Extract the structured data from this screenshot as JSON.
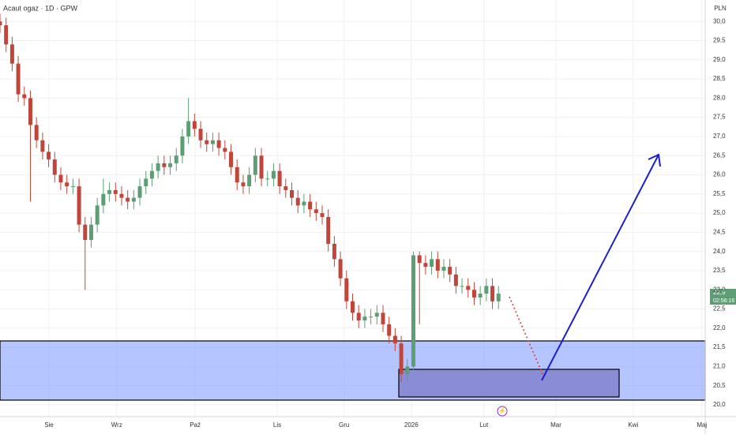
{
  "chart_data": {
    "type": "candlestick",
    "title": "Acaut ogaz · 1D · GPW",
    "currency": "PLN",
    "last_price_label": "22,9",
    "countdown": "02:56:16",
    "up_color": "#5c9f74",
    "down_color": "#c0463a",
    "grid": true,
    "xlim": [
      0,
      232
    ],
    "ylim": [
      19.69,
      30.56
    ],
    "xticks": [
      {
        "value": 16.1,
        "label": "Sie"
      },
      {
        "value": 38.4,
        "label": "Wrz"
      },
      {
        "value": 64.2,
        "label": "Paź"
      },
      {
        "value": 91.2,
        "label": "Lis"
      },
      {
        "value": 113.2,
        "label": "Gru"
      },
      {
        "value": 135.3,
        "label": "2026"
      },
      {
        "value": 159.2,
        "label": "Lut"
      },
      {
        "value": 182.9,
        "label": "Mar"
      },
      {
        "value": 208.3,
        "label": "Kwi"
      },
      {
        "value": 230.9,
        "label": "Maj"
      }
    ],
    "yticks": [
      {
        "value": 20.0,
        "label": "20,0"
      },
      {
        "value": 20.5,
        "label": "20,5"
      },
      {
        "value": 21.0,
        "label": "21,0"
      },
      {
        "value": 21.5,
        "label": "21,5"
      },
      {
        "value": 22.0,
        "label": "22,0"
      },
      {
        "value": 22.5,
        "label": "22,5"
      },
      {
        "value": 23.0,
        "label": "23,0"
      },
      {
        "value": 23.5,
        "label": "23,5"
      },
      {
        "value": 24.0,
        "label": "24,0"
      },
      {
        "value": 24.5,
        "label": "24,5"
      },
      {
        "value": 25.0,
        "label": "25,0"
      },
      {
        "value": 25.5,
        "label": "25,5"
      },
      {
        "value": 26.0,
        "label": "26,0"
      },
      {
        "value": 26.5,
        "label": "26,5"
      },
      {
        "value": 27.0,
        "label": "27,0"
      },
      {
        "value": 27.5,
        "label": "27,5"
      },
      {
        "value": 28.0,
        "label": "28,0"
      },
      {
        "value": 28.5,
        "label": "28,5"
      },
      {
        "value": 29.0,
        "label": "29,0"
      },
      {
        "value": 29.5,
        "label": "29,5"
      },
      {
        "value": 30.0,
        "label": "30,0"
      }
    ],
    "x": [
      0,
      2,
      4,
      6,
      8,
      10,
      12,
      14,
      16,
      18,
      20,
      22,
      24,
      26,
      28,
      30,
      32,
      34,
      36,
      38,
      40,
      42,
      44,
      46,
      48,
      50,
      52,
      54,
      56,
      58,
      60,
      62,
      64,
      66,
      68,
      70,
      72,
      74,
      76,
      78,
      80,
      82,
      84,
      86,
      88,
      90,
      92,
      94,
      96,
      98,
      100,
      102,
      104,
      106,
      108,
      110,
      112,
      114,
      116,
      118,
      120,
      122,
      124,
      126,
      128,
      130,
      132,
      134,
      136,
      138,
      140,
      142,
      144,
      146,
      148,
      150,
      152,
      154,
      156,
      158,
      160,
      162,
      164
    ],
    "open": [
      30.0,
      29.9,
      29.4,
      28.9,
      28.1,
      28.0,
      27.3,
      26.9,
      26.6,
      26.4,
      26.0,
      25.8,
      25.7,
      25.7,
      24.7,
      24.3,
      24.7,
      25.2,
      25.5,
      25.6,
      25.5,
      25.4,
      25.3,
      25.4,
      25.7,
      25.9,
      26.1,
      26.3,
      26.2,
      26.3,
      26.5,
      27.0,
      27.4,
      27.2,
      26.9,
      26.8,
      26.9,
      26.7,
      26.6,
      26.2,
      25.8,
      25.7,
      26.0,
      26.5,
      25.9,
      25.9,
      26.1,
      25.7,
      25.6,
      25.4,
      25.2,
      25.3,
      25.1,
      25.0,
      24.9,
      24.2,
      23.8,
      23.3,
      22.7,
      22.4,
      22.2,
      22.3,
      22.3,
      22.4,
      22.1,
      21.8,
      21.6,
      20.8,
      21.0,
      23.9,
      23.7,
      23.6,
      23.8,
      23.5,
      23.6,
      23.4,
      23.1,
      23.1,
      23.0,
      22.8,
      22.9,
      23.1,
      22.7
    ],
    "high": [
      30.2,
      30.1,
      29.6,
      29.1,
      28.3,
      28.2,
      27.5,
      27.1,
      26.8,
      26.6,
      26.2,
      26.0,
      25.9,
      25.9,
      24.9,
      24.9,
      25.4,
      25.9,
      25.8,
      25.8,
      25.7,
      25.6,
      25.6,
      25.9,
      26.1,
      26.3,
      26.5,
      26.5,
      26.5,
      26.7,
      27.2,
      28.0,
      27.6,
      27.4,
      27.1,
      27.1,
      27.1,
      26.9,
      26.8,
      26.4,
      26.0,
      26.2,
      26.7,
      26.7,
      26.1,
      26.3,
      26.3,
      25.9,
      25.8,
      25.6,
      25.5,
      25.5,
      25.3,
      25.2,
      25.1,
      24.4,
      24.0,
      23.5,
      22.9,
      22.6,
      22.5,
      22.5,
      22.6,
      22.6,
      22.3,
      22.0,
      21.8,
      21.2,
      24.0,
      24.0,
      23.9,
      24.0,
      24.0,
      23.8,
      23.8,
      23.6,
      23.3,
      23.3,
      23.2,
      23.1,
      23.3,
      23.3,
      23.1
    ],
    "low": [
      29.7,
      29.2,
      28.7,
      27.9,
      27.8,
      25.3,
      26.7,
      26.4,
      26.2,
      25.8,
      25.6,
      25.5,
      25.5,
      24.5,
      23.0,
      24.1,
      24.5,
      25.0,
      25.3,
      25.3,
      25.2,
      25.1,
      25.1,
      25.2,
      25.5,
      25.7,
      25.9,
      26.0,
      26.0,
      26.1,
      26.3,
      26.8,
      27.0,
      26.7,
      26.6,
      26.6,
      26.5,
      26.4,
      26.0,
      25.6,
      25.5,
      25.5,
      25.8,
      25.7,
      25.7,
      25.7,
      25.5,
      25.4,
      25.2,
      25.0,
      25.0,
      24.9,
      24.8,
      24.7,
      24.0,
      23.6,
      23.1,
      22.5,
      22.2,
      22.0,
      22.0,
      22.1,
      22.1,
      21.9,
      21.6,
      21.4,
      20.6,
      20.6,
      20.9,
      22.1,
      23.4,
      23.4,
      23.3,
      23.3,
      23.2,
      22.9,
      22.9,
      22.8,
      22.6,
      22.6,
      22.7,
      22.5,
      22.5
    ],
    "close": [
      29.9,
      29.4,
      28.9,
      28.1,
      28.0,
      27.3,
      26.9,
      26.6,
      26.4,
      26.0,
      25.8,
      25.7,
      25.7,
      24.7,
      24.3,
      24.7,
      25.2,
      25.5,
      25.6,
      25.5,
      25.4,
      25.3,
      25.4,
      25.7,
      25.9,
      26.1,
      26.3,
      26.2,
      26.3,
      26.5,
      27.0,
      27.4,
      27.2,
      26.9,
      26.8,
      26.9,
      26.7,
      26.6,
      26.2,
      25.8,
      25.7,
      26.0,
      26.5,
      25.9,
      25.9,
      26.1,
      25.7,
      25.6,
      25.4,
      25.2,
      25.3,
      25.1,
      25.0,
      24.9,
      24.2,
      23.8,
      23.3,
      22.7,
      22.4,
      22.2,
      22.3,
      22.3,
      22.4,
      22.1,
      21.8,
      21.6,
      20.8,
      21.0,
      23.9,
      23.7,
      23.6,
      23.8,
      23.5,
      23.6,
      23.4,
      23.1,
      23.1,
      23.0,
      22.8,
      22.9,
      23.1,
      22.7,
      22.9
    ]
  }
}
